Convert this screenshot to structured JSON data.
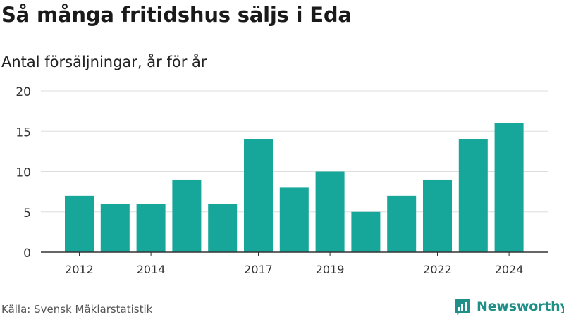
{
  "header": {
    "title": "Så många fritidshus säljs i Eda",
    "subtitle": "Antal försäljningar, år för år"
  },
  "footer": {
    "source": "Källa: Svensk Mäklarstatistik",
    "brand": "Newsworthy"
  },
  "colors": {
    "bar": "#16a79a",
    "brand": "#1f8f87",
    "grid": "#dddddd",
    "axis": "#333333"
  },
  "icons": {
    "logo": "bar-chart-bubble-icon"
  },
  "chart_data": {
    "type": "bar",
    "title": "Så många fritidshus säljs i Eda",
    "subtitle": "Antal försäljningar, år för år",
    "xlabel": "",
    "ylabel": "",
    "categories": [
      "2012",
      "2013",
      "2014",
      "2015",
      "2016",
      "2017",
      "2018",
      "2019",
      "2020",
      "2021",
      "2022",
      "2023",
      "2024"
    ],
    "values": [
      7,
      6,
      6,
      9,
      6,
      14,
      8,
      10,
      5,
      7,
      9,
      14,
      16
    ],
    "x_tick_labels": [
      "2012",
      "2014",
      "2017",
      "2019",
      "2022",
      "2024"
    ],
    "ylim": [
      0,
      20
    ],
    "y_ticks": [
      0,
      5,
      10,
      15,
      20
    ],
    "grid": true,
    "legend": "none"
  }
}
